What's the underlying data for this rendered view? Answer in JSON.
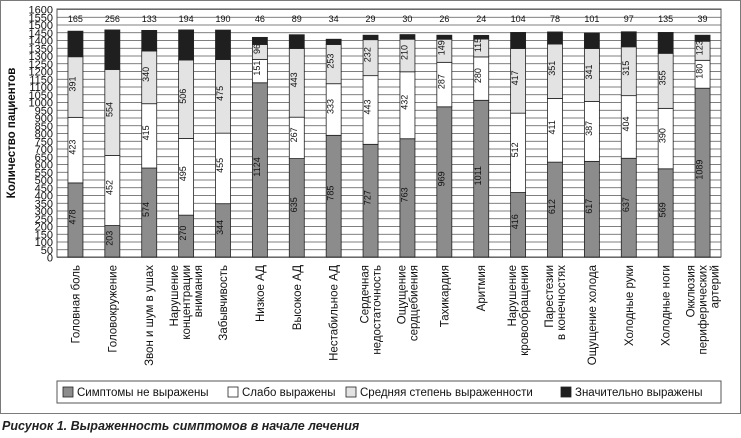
{
  "caption": "Рисунок 1. Выраженность симптомов в начале лечения",
  "colors": {
    "not_expressed": "#8c8c8c",
    "weak": "#ffffff",
    "moderate": "#e3e3e3",
    "significant": "#1f1f1f"
  },
  "chart_data": {
    "type": "bar",
    "stacked": true,
    "ylabel": "Количество пациентов",
    "xlabel": "",
    "title": "",
    "ylim": [
      0,
      1600
    ],
    "yticks": [
      0,
      50,
      100,
      150,
      200,
      250,
      300,
      350,
      400,
      450,
      500,
      550,
      600,
      650,
      700,
      750,
      800,
      850,
      900,
      950,
      1000,
      1050,
      1100,
      1150,
      1200,
      1250,
      1300,
      1350,
      1400,
      1450,
      1500,
      1550,
      1600
    ],
    "grid": true,
    "legend_position": "bottom",
    "categories": [
      "Головная боль",
      "Головокружение",
      "Звон и шум в ушах",
      "Нарушение концентрации внимания",
      "Забывчивость",
      "Низкое АД",
      "Высокое АД",
      "Нестабильное АД",
      "Сердечная недостаточность",
      "Ощущение сердцебиения",
      "Тахикардия",
      "Аритмия",
      "Нарушение кровообращения",
      "Парестезии в конечностях",
      "Ощущение холода",
      "Холодные руки",
      "Холодные ноги",
      "Окклюзия периферических артерий"
    ],
    "category_lines": [
      [
        "Головная боль"
      ],
      [
        "Головокружение"
      ],
      [
        "Звон и шум в ушах"
      ],
      [
        "Нарушение",
        "концентрации",
        "внимания"
      ],
      [
        "Забывчивость"
      ],
      [
        "Низкое АД"
      ],
      [
        "Высокое АД"
      ],
      [
        "Нестабильное АД"
      ],
      [
        "Сердечная",
        "недостаточность"
      ],
      [
        "Ощущение",
        "сердцебиения"
      ],
      [
        "Тахикардия"
      ],
      [
        "Аритмия"
      ],
      [
        "Нарушение",
        "кровообращения"
      ],
      [
        "Парестезии",
        "в конечностях"
      ],
      [
        "Ощущение холода"
      ],
      [
        "Холодные руки"
      ],
      [
        "Холодные ноги"
      ],
      [
        "Окклюзия",
        "периферических",
        "артерий"
      ]
    ],
    "series": [
      {
        "name": "Симптомы не выражены",
        "color": "#8c8c8c",
        "values": [
          478,
          203,
          574,
          270,
          344,
          1124,
          635,
          785,
          727,
          763,
          969,
          1011,
          416,
          612,
          617,
          637,
          569,
          1089
        ]
      },
      {
        "name": "Слабо выражены",
        "color": "#ffffff",
        "values": [
          423,
          452,
          415,
          495,
          455,
          151,
          267,
          333,
          443,
          432,
          287,
          280,
          512,
          411,
          387,
          404,
          390,
          180
        ]
      },
      {
        "name": "Средняя степень выраженности",
        "color": "#e3e3e3",
        "values": [
          391,
          554,
          340,
          506,
          475,
          96,
          443,
          253,
          232,
          210,
          149,
          115,
          417,
          351,
          341,
          315,
          355,
          123
        ]
      },
      {
        "name": "Значительно выражены",
        "color": "#1f1f1f",
        "values": [
          165,
          256,
          133,
          194,
          190,
          46,
          89,
          34,
          29,
          30,
          26,
          24,
          104,
          78,
          101,
          97,
          135,
          39
        ]
      }
    ]
  }
}
